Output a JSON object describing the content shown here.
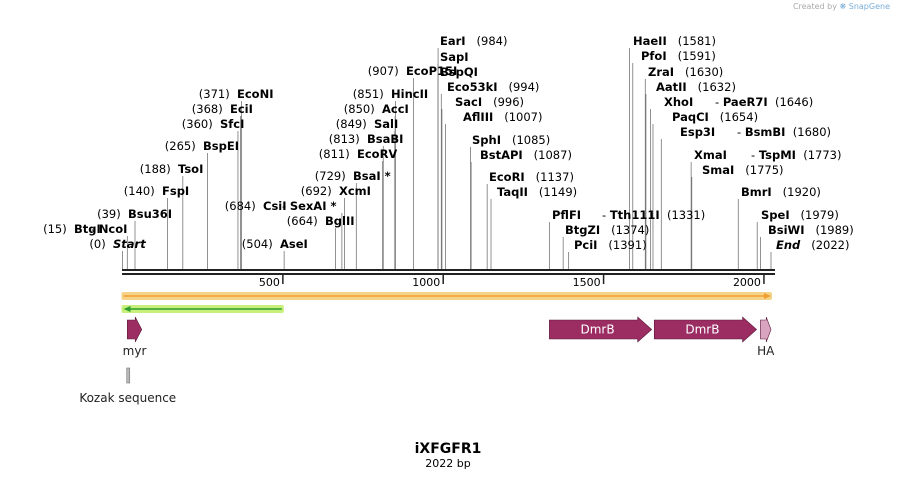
{
  "credit": {
    "prefix": "Created by",
    "brand": "SnapGene"
  },
  "map": {
    "name": "iXFGFR1",
    "length_label": "2022 bp",
    "length": 2022,
    "ticks": [
      {
        "value": 500,
        "label": "500"
      },
      {
        "value": 1000,
        "label": "1000"
      },
      {
        "value": 1500,
        "label": "1500"
      },
      {
        "value": 2000,
        "label": "2000"
      }
    ]
  },
  "sites": [
    {
      "pos": "(0)",
      "name": "Start",
      "italic": true,
      "at": 0
    },
    {
      "pos": "(15)",
      "name": "BtgI",
      "at": 15
    },
    {
      "name": "NcoI",
      "at": 15
    },
    {
      "pos": "(39)",
      "name": "Bsu36I",
      "at": 39
    },
    {
      "pos": "(140)",
      "name": "FspI",
      "at": 140
    },
    {
      "pos": "(188)",
      "name": "TsoI",
      "at": 188
    },
    {
      "pos": "(265)",
      "name": "BspEI",
      "at": 265
    },
    {
      "pos": "(360)",
      "name": "SfcI",
      "at": 360
    },
    {
      "pos": "(368)",
      "name": "EciI",
      "at": 368
    },
    {
      "pos": "(371)",
      "name": "EcoNI",
      "at": 371
    },
    {
      "pos": "(504)",
      "name": "AseI",
      "at": 504
    },
    {
      "pos": "(684)",
      "name": "CsiI",
      "at": 684
    },
    {
      "name": "SexAI *",
      "at": 684
    },
    {
      "pos": "(664)",
      "name": "BglII",
      "at": 664
    },
    {
      "pos": "(692)",
      "name": "XcmI",
      "at": 692
    },
    {
      "pos": "(729)",
      "name": "BsaI *",
      "at": 729
    },
    {
      "pos": "(811)",
      "name": "EcoRV",
      "at": 811
    },
    {
      "pos": "(813)",
      "name": "BsaBI",
      "at": 813
    },
    {
      "pos": "(849)",
      "name": "SalI",
      "at": 849
    },
    {
      "pos": "(850)",
      "name": "AccI",
      "at": 850
    },
    {
      "pos": "(851)",
      "name": "HincII",
      "at": 851
    },
    {
      "pos": "(907)",
      "name": "EcoP15I",
      "at": 907
    },
    {
      "name": "EarI",
      "pos": "(984)",
      "at": 984
    },
    {
      "name": "SapI",
      "at": 984
    },
    {
      "name": "BspQI",
      "at": 984
    },
    {
      "name": "Eco53kI",
      "pos": "(994)",
      "at": 994
    },
    {
      "name": "SacI",
      "pos": "(996)",
      "at": 996
    },
    {
      "name": "AflIII",
      "pos": "(1007)",
      "at": 1007
    },
    {
      "name": "SphI",
      "pos": "(1085)",
      "at": 1085
    },
    {
      "name": "BstAPI",
      "pos": "(1087)",
      "at": 1087
    },
    {
      "name": "EcoRI",
      "pos": "(1137)",
      "at": 1137
    },
    {
      "name": "TaqII",
      "pos": "(1149)",
      "at": 1149
    },
    {
      "name": "PflFI",
      "at": 1331
    },
    {
      "name": "Tth111I",
      "pos": "(1331)",
      "at": 1331
    },
    {
      "name": "BtgZI",
      "pos": "(1374)",
      "at": 1374
    },
    {
      "name": "PciI",
      "pos": "(1391)",
      "at": 1391
    },
    {
      "name": "HaeII",
      "pos": "(1581)",
      "at": 1581
    },
    {
      "name": "PfoI",
      "pos": "(1591)",
      "at": 1591
    },
    {
      "name": "ZraI",
      "pos": "(1630)",
      "at": 1630
    },
    {
      "name": "AatII",
      "pos": "(1632)",
      "at": 1632
    },
    {
      "name": "XhoI",
      "at": 1646
    },
    {
      "name": "PaeR7I",
      "pos": "(1646)",
      "at": 1646
    },
    {
      "name": "PaqCI",
      "pos": "(1654)",
      "at": 1654
    },
    {
      "name": "Esp3I",
      "at": 1680
    },
    {
      "name": "BsmBI",
      "pos": "(1680)",
      "at": 1680
    },
    {
      "name": "XmaI",
      "at": 1773
    },
    {
      "name": "TspMI",
      "pos": "(1773)",
      "at": 1773
    },
    {
      "name": "SmaI",
      "pos": "(1775)",
      "at": 1775
    },
    {
      "name": "BmrI",
      "pos": "(1920)",
      "at": 1920
    },
    {
      "name": "SpeI",
      "pos": "(1979)",
      "at": 1979
    },
    {
      "name": "BsiWI",
      "pos": "(1989)",
      "at": 1989
    },
    {
      "name": "End",
      "italic": true,
      "pos": "(2022)",
      "at": 2022
    }
  ],
  "features": [
    {
      "name": "myr",
      "label": "myr",
      "start": 15,
      "end": 60,
      "color": "#9b2d63",
      "shape": "arrow",
      "label_pos": "below"
    },
    {
      "name": "DmrB",
      "label": "DmrB",
      "start": 1331,
      "end": 1650,
      "color": "#9b2d63",
      "shape": "arrow",
      "label_pos": "inside"
    },
    {
      "name": "DmrB",
      "label": "DmrB",
      "start": 1658,
      "end": 1977,
      "color": "#9b2d63",
      "shape": "arrow",
      "label_pos": "inside"
    },
    {
      "name": "HA",
      "label": "HA",
      "start": 1989,
      "end": 2022,
      "color": "#d8a4c0",
      "shape": "arrow",
      "label_pos": "below"
    },
    {
      "name": "Kozak sequence",
      "label": "Kozak sequence",
      "start": 7,
      "end": 15,
      "color": "#b8b8b8",
      "shape": "box",
      "label_pos": "below"
    }
  ],
  "orfs": [
    {
      "start": 0,
      "end": 2022,
      "direction": "forward",
      "color": "#f0a030",
      "outline": "#f5d48a"
    },
    {
      "start": 0,
      "end": 500,
      "direction": "reverse",
      "color": "#2e9e2e",
      "outline": "#c8ef7a"
    }
  ]
}
